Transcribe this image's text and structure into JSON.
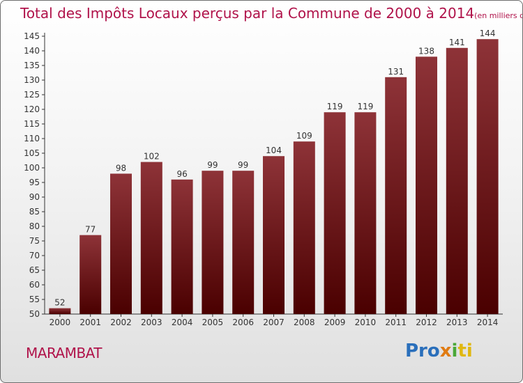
{
  "header": {
    "title": "Total des Impôts Locaux perçus par la Commune de 2000 à 2014",
    "subtitle": "(en milliers d'€)"
  },
  "commune": "MARAMBAT",
  "logo": {
    "part1": "Pro",
    "part2": "x",
    "part3": "i",
    "part4": "ti"
  },
  "colors": {
    "title": "#b0124a",
    "bar_top": "#8e3338",
    "bar_bottom": "#4a0000"
  },
  "chart_data": {
    "type": "bar",
    "title": "Total des Impôts Locaux perçus par la Commune de 2000 à 2014",
    "xlabel": "",
    "ylabel": "",
    "categories": [
      "2000",
      "2001",
      "2002",
      "2003",
      "2004",
      "2005",
      "2006",
      "2007",
      "2008",
      "2009",
      "2010",
      "2011",
      "2012",
      "2013",
      "2014"
    ],
    "values": [
      52,
      77,
      98,
      102,
      96,
      99,
      99,
      104,
      109,
      119,
      119,
      131,
      138,
      141,
      144
    ],
    "ylim": [
      50,
      145
    ],
    "yticks": [
      50,
      55,
      60,
      65,
      70,
      75,
      80,
      85,
      90,
      95,
      100,
      105,
      110,
      115,
      120,
      125,
      130,
      135,
      140,
      145
    ],
    "grid": false
  }
}
